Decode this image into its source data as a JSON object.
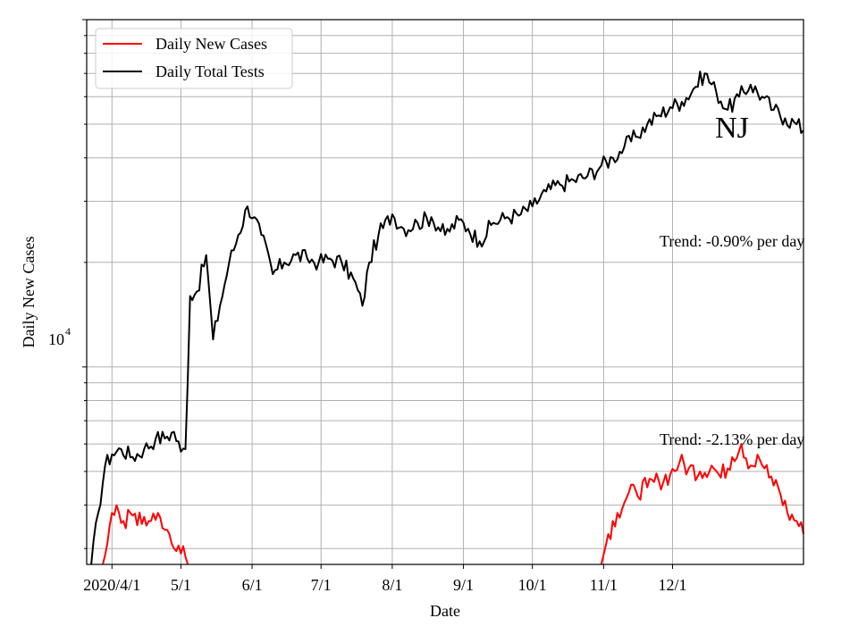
{
  "chart_data": {
    "type": "line",
    "title": "",
    "xlabel": "Date",
    "ylabel": "Daily New Cases",
    "yscale": "log",
    "ylim": [
      2700,
      100000
    ],
    "xlim": [
      "2020-03-21",
      "2021-01-27"
    ],
    "grid": true,
    "legend_position": "top-left",
    "x_ticks": [
      {
        "date": "2020-04-01",
        "label": "2020/4/1"
      },
      {
        "date": "2020-05-01",
        "label": "5/1"
      },
      {
        "date": "2020-06-01",
        "label": "6/1"
      },
      {
        "date": "2020-07-01",
        "label": "7/1"
      },
      {
        "date": "2020-08-01",
        "label": "8/1"
      },
      {
        "date": "2020-09-01",
        "label": "9/1"
      },
      {
        "date": "2020-10-01",
        "label": "10/1"
      },
      {
        "date": "2020-11-01",
        "label": "11/1"
      },
      {
        "date": "2020-12-01",
        "label": "12/1"
      }
    ],
    "y_major_tick": {
      "value": 10000,
      "label_base": "10",
      "label_exp": "4"
    },
    "annotations": {
      "state": "NJ",
      "trend_tests": "Trend: -0.90% per day",
      "trend_cases": "Trend: -2.13% per day"
    },
    "series": [
      {
        "name": "Daily Total Tests",
        "color": "#000000",
        "points": [
          [
            "2020-03-23",
            2700
          ],
          [
            "2020-03-26",
            3800
          ],
          [
            "2020-03-29",
            5200
          ],
          [
            "2020-04-01",
            5600
          ],
          [
            "2020-04-05",
            5800
          ],
          [
            "2020-04-10",
            5500
          ],
          [
            "2020-04-15",
            5800
          ],
          [
            "2020-04-20",
            6200
          ],
          [
            "2020-04-25",
            6300
          ],
          [
            "2020-04-28",
            6500
          ],
          [
            "2020-05-01",
            5700
          ],
          [
            "2020-05-03",
            5800
          ],
          [
            "2020-05-05",
            16000
          ],
          [
            "2020-05-08",
            16500
          ],
          [
            "2020-05-12",
            21000
          ],
          [
            "2020-05-15",
            12000
          ],
          [
            "2020-05-18",
            15000
          ],
          [
            "2020-05-22",
            20000
          ],
          [
            "2020-05-26",
            24000
          ],
          [
            "2020-05-30",
            29000
          ],
          [
            "2020-06-02",
            27000
          ],
          [
            "2020-06-05",
            24000
          ],
          [
            "2020-06-10",
            18500
          ],
          [
            "2020-06-15",
            20000
          ],
          [
            "2020-06-20",
            21000
          ],
          [
            "2020-06-25",
            20500
          ],
          [
            "2020-06-30",
            20000
          ],
          [
            "2020-07-05",
            20500
          ],
          [
            "2020-07-10",
            20000
          ],
          [
            "2020-07-15",
            18000
          ],
          [
            "2020-07-19",
            15000
          ],
          [
            "2020-07-22",
            20000
          ],
          [
            "2020-07-26",
            24000
          ],
          [
            "2020-08-01",
            27500
          ],
          [
            "2020-08-06",
            25000
          ],
          [
            "2020-08-12",
            26000
          ],
          [
            "2020-08-18",
            27000
          ],
          [
            "2020-08-24",
            24000
          ],
          [
            "2020-08-30",
            26500
          ],
          [
            "2020-09-03",
            25000
          ],
          [
            "2020-09-08",
            23000
          ],
          [
            "2020-09-14",
            26000
          ],
          [
            "2020-09-20",
            27000
          ],
          [
            "2020-09-26",
            27500
          ],
          [
            "2020-10-01",
            29000
          ],
          [
            "2020-10-07",
            32000
          ],
          [
            "2020-10-13",
            33500
          ],
          [
            "2020-10-19",
            34500
          ],
          [
            "2020-10-25",
            35500
          ],
          [
            "2020-10-31",
            38000
          ],
          [
            "2020-11-05",
            40000
          ],
          [
            "2020-11-10",
            43000
          ],
          [
            "2020-11-15",
            46000
          ],
          [
            "2020-11-20",
            50000
          ],
          [
            "2020-11-25",
            53000
          ],
          [
            "2020-11-30",
            56000
          ],
          [
            "2020-12-05",
            58000
          ],
          [
            "2020-12-10",
            63000
          ],
          [
            "2020-12-15",
            70000
          ],
          [
            "2020-12-20",
            62000
          ],
          [
            "2020-12-25",
            55000
          ],
          [
            "2020-12-30",
            60000
          ],
          [
            "2021-01-04",
            65000
          ],
          [
            "2021-01-09",
            60000
          ],
          [
            "2021-01-14",
            55000
          ],
          [
            "2021-01-19",
            52000
          ],
          [
            "2021-01-24",
            50000
          ],
          [
            "2021-01-27",
            48000
          ]
        ]
      },
      {
        "name": "Daily New Cases",
        "color": "#ff0000",
        "segments": [
          [
            [
              "2020-03-28",
              2700
            ],
            [
              "2020-03-30",
              3100
            ],
            [
              "2020-04-01",
              3800
            ],
            [
              "2020-04-03",
              4000
            ],
            [
              "2020-04-06",
              3600
            ],
            [
              "2020-04-09",
              3800
            ],
            [
              "2020-04-12",
              3500
            ],
            [
              "2020-04-15",
              3700
            ],
            [
              "2020-04-18",
              3600
            ],
            [
              "2020-04-21",
              3800
            ],
            [
              "2020-04-24",
              3400
            ],
            [
              "2020-04-27",
              3100
            ],
            [
              "2020-04-29",
              2950
            ],
            [
              "2020-05-01",
              2900
            ],
            [
              "2020-05-02",
              3050
            ],
            [
              "2020-05-04",
              2700
            ]
          ],
          [
            [
              "2020-10-31",
              2700
            ],
            [
              "2020-11-03",
              3300
            ],
            [
              "2020-11-07",
              3800
            ],
            [
              "2020-11-11",
              4200
            ],
            [
              "2020-11-15",
              4400
            ],
            [
              "2020-11-20",
              4500
            ],
            [
              "2020-11-25",
              4700
            ],
            [
              "2020-11-30",
              4900
            ],
            [
              "2020-12-04",
              5300
            ],
            [
              "2020-12-08",
              5100
            ],
            [
              "2020-12-13",
              5000
            ],
            [
              "2020-12-18",
              5200
            ],
            [
              "2020-12-22",
              4800
            ],
            [
              "2020-12-27",
              5500
            ],
            [
              "2020-12-31",
              6000
            ],
            [
              "2021-01-04",
              5200
            ],
            [
              "2021-01-08",
              5400
            ],
            [
              "2021-01-12",
              4800
            ],
            [
              "2021-01-16",
              4500
            ],
            [
              "2021-01-20",
              3800
            ],
            [
              "2021-01-24",
              3600
            ],
            [
              "2021-01-27",
              3300
            ]
          ]
        ]
      }
    ],
    "legend": [
      {
        "label": "Daily New Cases",
        "color": "#ff0000"
      },
      {
        "label": "Daily Total Tests",
        "color": "#000000"
      }
    ]
  }
}
